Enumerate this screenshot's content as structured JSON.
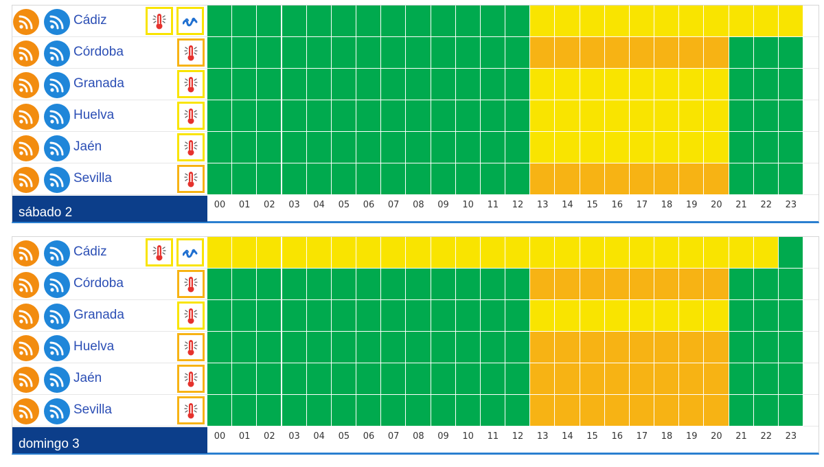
{
  "colors": {
    "green": "#00aa4e",
    "yellow": "#f9e400",
    "orange": "#f7b314",
    "feed_orange": "#f28c0f",
    "feed_blue": "#1f86d9",
    "day_band": "#0c3e8a",
    "city_text": "#2c4fb5"
  },
  "hour_labels": [
    "00",
    "01",
    "02",
    "03",
    "04",
    "05",
    "06",
    "07",
    "08",
    "09",
    "10",
    "11",
    "12",
    "13",
    "14",
    "15",
    "16",
    "17",
    "18",
    "19",
    "20",
    "21",
    "22",
    "23"
  ],
  "days": [
    {
      "label": "sábado 2",
      "rows": [
        {
          "city": "Cádiz",
          "icons": [
            "thermometer-icon",
            "coastal-wave-icon"
          ],
          "warning_level": "yellow",
          "hours": [
            "green",
            "green",
            "green",
            "green",
            "green",
            "green",
            "green",
            "green",
            "green",
            "green",
            "green",
            "green",
            "green",
            "yellow",
            "yellow",
            "yellow",
            "yellow",
            "yellow",
            "yellow",
            "yellow",
            "yellow",
            "yellow",
            "yellow",
            "yellow"
          ]
        },
        {
          "city": "Córdoba",
          "icons": [
            "thermometer-icon"
          ],
          "warning_level": "orange",
          "hours": [
            "green",
            "green",
            "green",
            "green",
            "green",
            "green",
            "green",
            "green",
            "green",
            "green",
            "green",
            "green",
            "green",
            "orange",
            "orange",
            "orange",
            "orange",
            "orange",
            "orange",
            "orange",
            "orange",
            "green",
            "green",
            "green"
          ]
        },
        {
          "city": "Granada",
          "icons": [
            "thermometer-icon"
          ],
          "warning_level": "yellow",
          "hours": [
            "green",
            "green",
            "green",
            "green",
            "green",
            "green",
            "green",
            "green",
            "green",
            "green",
            "green",
            "green",
            "green",
            "yellow",
            "yellow",
            "yellow",
            "yellow",
            "yellow",
            "yellow",
            "yellow",
            "yellow",
            "green",
            "green",
            "green"
          ]
        },
        {
          "city": "Huelva",
          "icons": [
            "thermometer-icon"
          ],
          "warning_level": "yellow",
          "hours": [
            "green",
            "green",
            "green",
            "green",
            "green",
            "green",
            "green",
            "green",
            "green",
            "green",
            "green",
            "green",
            "green",
            "yellow",
            "yellow",
            "yellow",
            "yellow",
            "yellow",
            "yellow",
            "yellow",
            "yellow",
            "green",
            "green",
            "green"
          ]
        },
        {
          "city": "Jaén",
          "icons": [
            "thermometer-icon"
          ],
          "warning_level": "yellow",
          "hours": [
            "green",
            "green",
            "green",
            "green",
            "green",
            "green",
            "green",
            "green",
            "green",
            "green",
            "green",
            "green",
            "green",
            "yellow",
            "yellow",
            "yellow",
            "yellow",
            "yellow",
            "yellow",
            "yellow",
            "yellow",
            "green",
            "green",
            "green"
          ]
        },
        {
          "city": "Sevilla",
          "icons": [
            "thermometer-icon"
          ],
          "warning_level": "orange",
          "hours": [
            "green",
            "green",
            "green",
            "green",
            "green",
            "green",
            "green",
            "green",
            "green",
            "green",
            "green",
            "green",
            "green",
            "orange",
            "orange",
            "orange",
            "orange",
            "orange",
            "orange",
            "orange",
            "orange",
            "green",
            "green",
            "green"
          ]
        }
      ]
    },
    {
      "label": "domingo 3",
      "rows": [
        {
          "city": "Cádiz",
          "icons": [
            "thermometer-icon",
            "coastal-wave-icon"
          ],
          "warning_level": "yellow",
          "hours": [
            "yellow",
            "yellow",
            "yellow",
            "yellow",
            "yellow",
            "yellow",
            "yellow",
            "yellow",
            "yellow",
            "yellow",
            "yellow",
            "yellow",
            "yellow",
            "yellow",
            "yellow",
            "yellow",
            "yellow",
            "yellow",
            "yellow",
            "yellow",
            "yellow",
            "yellow",
            "yellow",
            "green"
          ]
        },
        {
          "city": "Córdoba",
          "icons": [
            "thermometer-icon"
          ],
          "warning_level": "orange",
          "hours": [
            "green",
            "green",
            "green",
            "green",
            "green",
            "green",
            "green",
            "green",
            "green",
            "green",
            "green",
            "green",
            "green",
            "orange",
            "orange",
            "orange",
            "orange",
            "orange",
            "orange",
            "orange",
            "orange",
            "green",
            "green",
            "green"
          ]
        },
        {
          "city": "Granada",
          "icons": [
            "thermometer-icon"
          ],
          "warning_level": "yellow",
          "hours": [
            "green",
            "green",
            "green",
            "green",
            "green",
            "green",
            "green",
            "green",
            "green",
            "green",
            "green",
            "green",
            "green",
            "yellow",
            "yellow",
            "yellow",
            "yellow",
            "yellow",
            "yellow",
            "yellow",
            "yellow",
            "green",
            "green",
            "green"
          ]
        },
        {
          "city": "Huelva",
          "icons": [
            "thermometer-icon"
          ],
          "warning_level": "orange",
          "hours": [
            "green",
            "green",
            "green",
            "green",
            "green",
            "green",
            "green",
            "green",
            "green",
            "green",
            "green",
            "green",
            "green",
            "orange",
            "orange",
            "orange",
            "orange",
            "orange",
            "orange",
            "orange",
            "orange",
            "green",
            "green",
            "green"
          ]
        },
        {
          "city": "Jaén",
          "icons": [
            "thermometer-icon"
          ],
          "warning_level": "orange",
          "hours": [
            "green",
            "green",
            "green",
            "green",
            "green",
            "green",
            "green",
            "green",
            "green",
            "green",
            "green",
            "green",
            "green",
            "orange",
            "orange",
            "orange",
            "orange",
            "orange",
            "orange",
            "orange",
            "orange",
            "green",
            "green",
            "green"
          ]
        },
        {
          "city": "Sevilla",
          "icons": [
            "thermometer-icon"
          ],
          "warning_level": "orange",
          "hours": [
            "green",
            "green",
            "green",
            "green",
            "green",
            "green",
            "green",
            "green",
            "green",
            "green",
            "green",
            "green",
            "green",
            "orange",
            "orange",
            "orange",
            "orange",
            "orange",
            "orange",
            "orange",
            "orange",
            "green",
            "green",
            "green"
          ]
        }
      ]
    }
  ]
}
